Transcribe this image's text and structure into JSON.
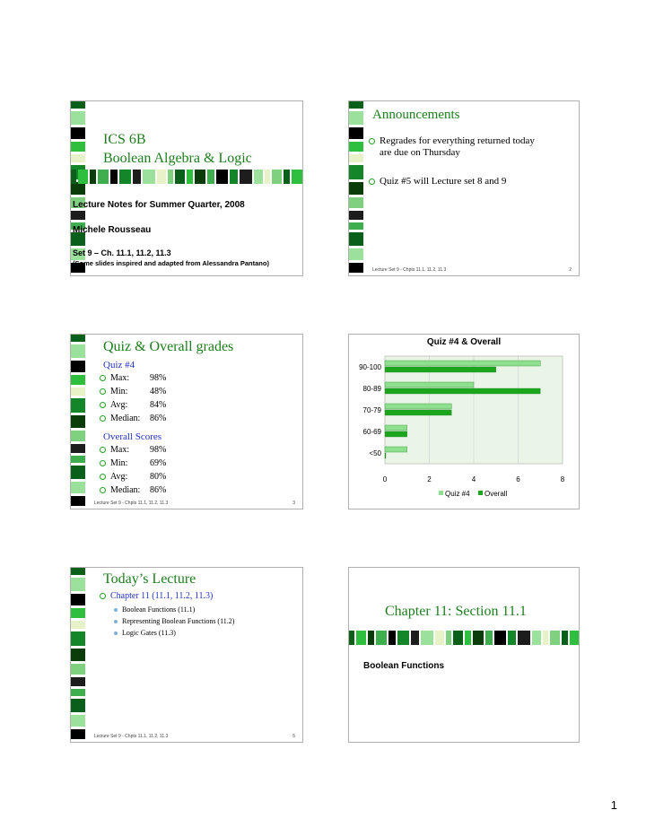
{
  "colors": {
    "accent_green": "#1e7d1e",
    "bullet_green": "#22a022",
    "subhead_blue": "#2233cc",
    "bar_light": "#8ee08e",
    "bar_dark": "#1aa61a"
  },
  "footer_text": "Lecture Set 9 - Chpts 11.1, 11.2, 11.3",
  "slide1": {
    "title_line1": "ICS 6B",
    "title_line2": "Boolean Algebra & Logic",
    "notes": "Lecture Notes for Summer Quarter, 2008",
    "author": "Michele Rousseau",
    "set_line": "Set 9 – Ch. 11.1, 11.2, 11.3",
    "credit": "(Some slides inspired and adapted from Alessandra Pantano)"
  },
  "slide2": {
    "title": "Announcements",
    "bullet1_line1": "Regrades for everything returned today",
    "bullet1_line2": "are due on Thursday",
    "bullet2": "Quiz #5 will Lecture set 8 and 9",
    "page": "2"
  },
  "slide3": {
    "title": "Quiz & Overall grades",
    "quiz_heading": "Quiz #4",
    "quiz_stats": [
      {
        "label": "Max:",
        "value": "98%"
      },
      {
        "label": "Min:",
        "value": "48%"
      },
      {
        "label": "Avg:",
        "value": "84%"
      },
      {
        "label": "Median:",
        "value": "86%"
      }
    ],
    "overall_heading": "Overall Scores",
    "overall_stats": [
      {
        "label": "Max:",
        "value": "98%"
      },
      {
        "label": "Min:",
        "value": "69%"
      },
      {
        "label": "Avg:",
        "value": "80%"
      },
      {
        "label": "Median:",
        "value": "86%"
      }
    ],
    "page": "3"
  },
  "chart_data": {
    "type": "bar",
    "orientation": "horizontal",
    "title": "Quiz #4 & Overall",
    "categories": [
      "90-100",
      "80-89",
      "70-79",
      "60-69",
      "<50"
    ],
    "series": [
      {
        "name": "Quiz #4",
        "values": [
          7,
          4,
          3,
          1,
          1
        ]
      },
      {
        "name": "Overall",
        "values": [
          5,
          7,
          3,
          1,
          0
        ]
      }
    ],
    "xlim": [
      0,
      8
    ],
    "xticks": [
      "0",
      "2",
      "4",
      "6",
      "8"
    ],
    "grid": true,
    "legend": "bottom"
  },
  "slide5": {
    "title": "Today’s Lecture",
    "main_bullet": "Chapter 11 (11.1, 11.2, 11.3)",
    "sub_bullets": [
      "Boolean Functions (11.1)",
      "Representing Boolean Functions (11.2)",
      "Logic Gates (11.3)"
    ],
    "page": "5"
  },
  "slide6": {
    "title": "Chapter 11: Section 11.1",
    "subtitle": "Boolean Functions"
  },
  "page_number": "1"
}
